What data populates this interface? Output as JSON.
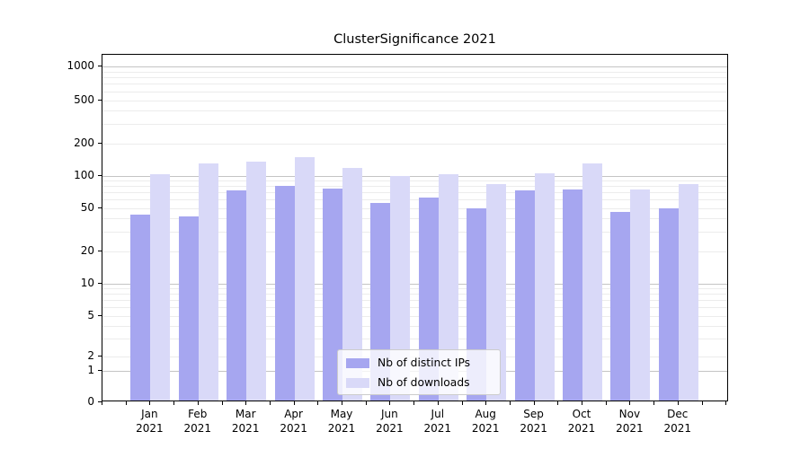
{
  "chart_data": {
    "type": "bar",
    "title": "ClusterSignificance 2021",
    "year_label": "2021",
    "categories": [
      "Jan",
      "Feb",
      "Mar",
      "Apr",
      "May",
      "Jun",
      "Jul",
      "Aug",
      "Sep",
      "Oct",
      "Nov",
      "Dec"
    ],
    "series": [
      {
        "name": "Nb of distinct IPs",
        "color": "#a6a6f0",
        "values": [
          42,
          40,
          70,
          77,
          73,
          54,
          60,
          48,
          70,
          72,
          44,
          48
        ]
      },
      {
        "name": "Nb of downloads",
        "color": "#d9d9f8",
        "values": [
          100,
          125,
          130,
          142,
          113,
          96,
          100,
          80,
          101,
          125,
          72,
          81
        ]
      }
    ],
    "y_ticks": [
      0,
      1,
      2,
      5,
      10,
      20,
      50,
      100,
      200,
      500,
      1000
    ],
    "ylim": [
      0,
      1280
    ],
    "scale": "symlog",
    "grid": "horizontal",
    "legend_position": "bottom-center",
    "colors": {
      "major_grid": "#c4c4c4",
      "minor_grid": "#ececec",
      "axis": "#000000"
    }
  }
}
